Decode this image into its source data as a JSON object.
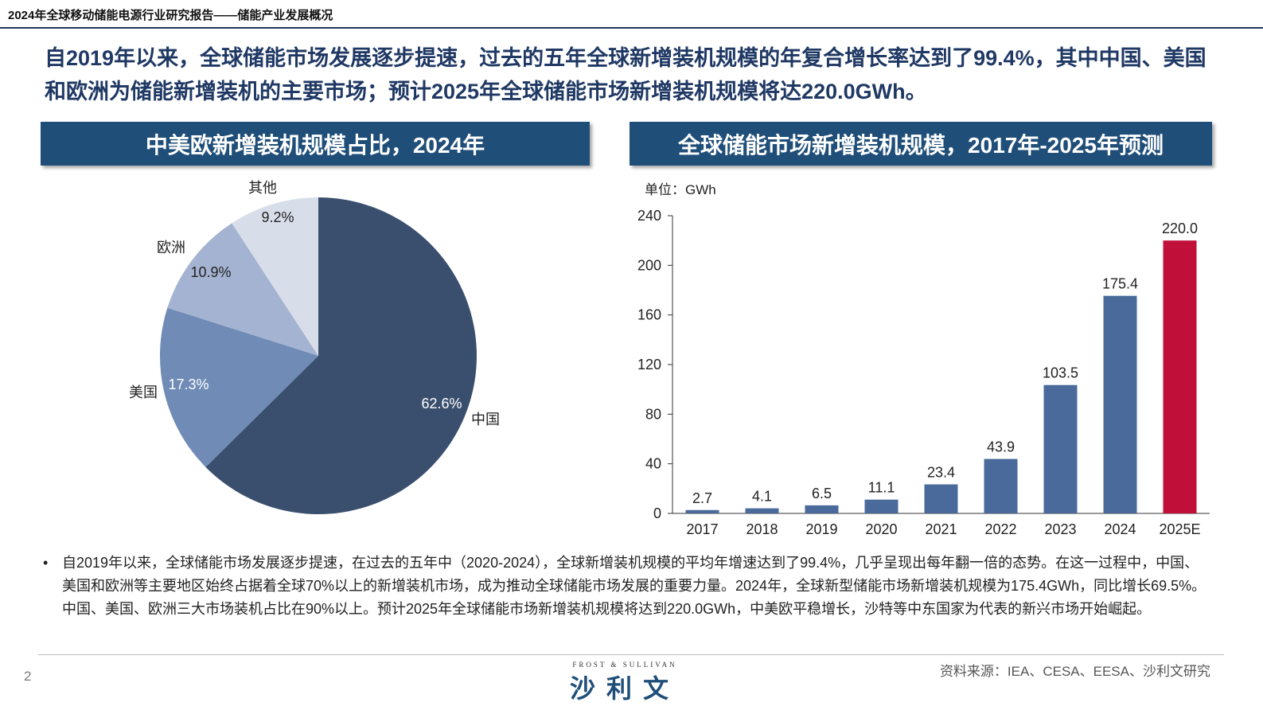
{
  "header": {
    "doc_title": "2024年全球移动储能电源行业研究报告——储能产业发展概况",
    "headline": "自2019年以来，全球储能市场发展逐步提速，过去的五年全球新增装机规模的年复合增长率达到了99.4%，其中中国、美国和欧洲为储能新增装机的主要市场；预计2025年全球储能市场新增装机规模将达220.0GWh。"
  },
  "left_panel": {
    "title": "中美欧新增装机规模占比，2024年"
  },
  "right_panel": {
    "title": "全球储能市场新增装机规模，2017年-2025年预测",
    "unit": "单位：GWh"
  },
  "chart_data": [
    {
      "type": "pie",
      "title": "中美欧新增装机规模占比，2024年",
      "labels": [
        "中国",
        "美国",
        "欧洲",
        "其他"
      ],
      "values": [
        62.6,
        17.3,
        10.9,
        9.2
      ],
      "value_labels": [
        "62.6%",
        "17.3%",
        "10.9%",
        "9.2%"
      ],
      "colors": [
        "#3a4f6e",
        "#6f8bb6",
        "#a3b3d1",
        "#d8dee9"
      ]
    },
    {
      "type": "bar",
      "title": "全球储能市场新增装机规模，2017年-2025年预测",
      "unit": "单位：GWh",
      "categories": [
        "2017",
        "2018",
        "2019",
        "2020",
        "2021",
        "2022",
        "2023",
        "2024",
        "2025E"
      ],
      "values": [
        2.7,
        4.1,
        6.5,
        11.1,
        23.4,
        43.9,
        103.5,
        175.4,
        220.0
      ],
      "value_labels": [
        "2.7",
        "4.1",
        "6.5",
        "11.1",
        "23.4",
        "43.9",
        "103.5",
        "175.4",
        "220.0"
      ],
      "yticks": [
        0,
        40,
        80,
        120,
        160,
        200,
        240
      ],
      "ylim": [
        0,
        240
      ],
      "bar_color": "#4a6a9c",
      "highlight_color": "#c0103a",
      "highlight_index": 8
    }
  ],
  "bullets": [
    "自2019年以来，全球储能市场发展逐步提速，在过去的五年中（2020-2024），全球新增装机规模的平均年增速达到了99.4%，几乎呈现出每年翻一倍的态势。在这一过程中，中国、美国和欧洲等主要地区始终占据着全球70%以上的新增装机市场，成为推动全球储能市场发展的重要力量。2024年，全球新型储能市场新增装机规模为175.4GWh，同比增长69.5%。中国、美国、欧洲三大市场装机占比在90%以上。预计2025年全球储能市场新增装机规模将达到220.0GWh，中美欧平稳增长，沙特等中东国家为代表的新兴市场开始崛起。"
  ],
  "footer": {
    "page": "2",
    "logo_en": "FROST & SULLIVAN",
    "logo_zh": "沙利文",
    "source": "资料来源：IEA、CESA、EESA、沙利文研究"
  }
}
